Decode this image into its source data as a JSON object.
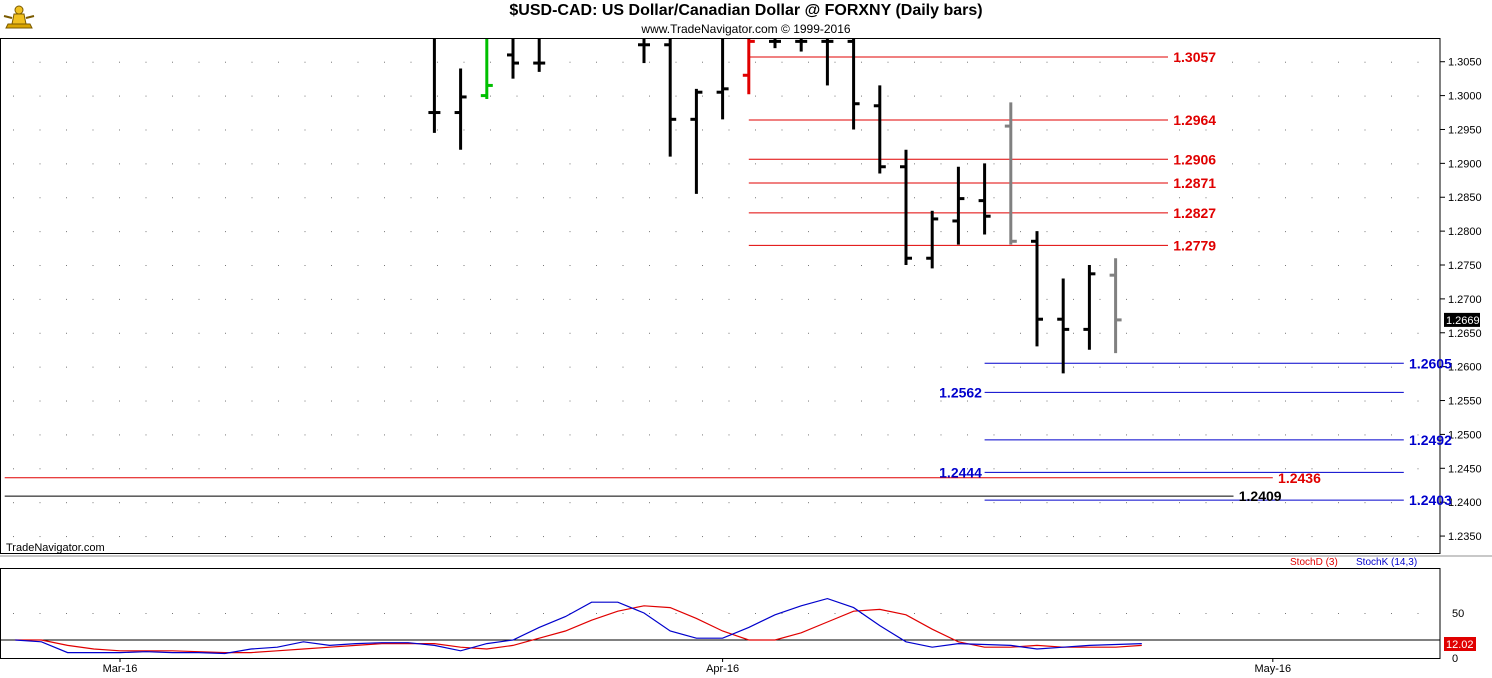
{
  "title": "$USD-CAD:  US Dollar/Canadian Dollar @ FORXNY  (Daily bars)",
  "copyright": "www.TradeNavigator.com © 1999-2016",
  "watermark": "TradeNavigator.com",
  "current_price_label": "1.2669",
  "stoch_value_label": "12.02",
  "indicator_labels": {
    "stochd": "StochD (3)",
    "stochk": "StochK (14,3)"
  },
  "colors": {
    "red_level": "#e00000",
    "blue_level": "#0000cc",
    "stochd": "#e00000",
    "stochk": "#0000cc",
    "bar": "#000000",
    "bar_gray": "#808080",
    "bar_red": "#e00000",
    "bar_green": "#00c000"
  },
  "chart_data": {
    "type": "bar",
    "price_axis": {
      "ylim": [
        1.2325,
        1.3085
      ],
      "ticks": [
        "1.3050",
        "1.3000",
        "1.2950",
        "1.2900",
        "1.2850",
        "1.2800",
        "1.2750",
        "1.2700",
        "1.2650",
        "1.2600",
        "1.2550",
        "1.2500",
        "1.2450",
        "1.2400",
        "1.2350"
      ]
    },
    "x_labels": [
      {
        "label": "Mar-16",
        "index": 0
      },
      {
        "label": "Apr-16",
        "index": 23
      },
      {
        "label": "May-16",
        "index": 44
      }
    ],
    "ohlc": [
      {
        "i": 12,
        "o": 1.2975,
        "h": 1.3085,
        "l": 1.2945,
        "c": 1.2975,
        "color": "bar"
      },
      {
        "i": 13,
        "o": 1.2975,
        "h": 1.304,
        "l": 1.292,
        "c": 1.2998,
        "color": "bar"
      },
      {
        "i": 14,
        "o": 1.3,
        "h": 1.3085,
        "l": 1.2995,
        "c": 1.3015,
        "color": "bar_green"
      },
      {
        "i": 15,
        "o": 1.306,
        "h": 1.3085,
        "l": 1.3025,
        "c": 1.3048,
        "color": "bar"
      },
      {
        "i": 16,
        "o": 1.3048,
        "h": 1.3085,
        "l": 1.3035,
        "c": 1.3048,
        "color": "bar"
      },
      {
        "i": 20,
        "o": 1.3075,
        "h": 1.3085,
        "l": 1.3048,
        "c": 1.3075,
        "color": "bar"
      },
      {
        "i": 21,
        "o": 1.3075,
        "h": 1.3085,
        "l": 1.291,
        "c": 1.2965,
        "color": "bar"
      },
      {
        "i": 22,
        "o": 1.2965,
        "h": 1.301,
        "l": 1.2855,
        "c": 1.3005,
        "color": "bar"
      },
      {
        "i": 23,
        "o": 1.3005,
        "h": 1.3085,
        "l": 1.2965,
        "c": 1.301,
        "color": "bar"
      },
      {
        "i": 24,
        "o": 1.303,
        "h": 1.3085,
        "l": 1.3002,
        "c": 1.308,
        "color": "bar_red"
      },
      {
        "i": 25,
        "o": 1.308,
        "h": 1.3085,
        "l": 1.307,
        "c": 1.308,
        "color": "bar"
      },
      {
        "i": 26,
        "o": 1.308,
        "h": 1.3085,
        "l": 1.3065,
        "c": 1.308,
        "color": "bar"
      },
      {
        "i": 27,
        "o": 1.308,
        "h": 1.3085,
        "l": 1.3015,
        "c": 1.308,
        "color": "bar"
      },
      {
        "i": 28,
        "o": 1.308,
        "h": 1.3085,
        "l": 1.295,
        "c": 1.2988,
        "color": "bar"
      },
      {
        "i": 29,
        "o": 1.2985,
        "h": 1.3015,
        "l": 1.2885,
        "c": 1.2895,
        "color": "bar"
      },
      {
        "i": 30,
        "o": 1.2895,
        "h": 1.292,
        "l": 1.275,
        "c": 1.276,
        "color": "bar"
      },
      {
        "i": 31,
        "o": 1.276,
        "h": 1.283,
        "l": 1.2745,
        "c": 1.2818,
        "color": "bar"
      },
      {
        "i": 32,
        "o": 1.2815,
        "h": 1.2895,
        "l": 1.278,
        "c": 1.2848,
        "color": "bar"
      },
      {
        "i": 33,
        "o": 1.2845,
        "h": 1.29,
        "l": 1.2795,
        "c": 1.2822,
        "color": "bar"
      },
      {
        "i": 34,
        "o": 1.2955,
        "h": 1.299,
        "l": 1.278,
        "c": 1.2785,
        "color": "bar_gray"
      },
      {
        "i": 35,
        "o": 1.2785,
        "h": 1.28,
        "l": 1.263,
        "c": 1.267,
        "color": "bar"
      },
      {
        "i": 36,
        "o": 1.267,
        "h": 1.273,
        "l": 1.259,
        "c": 1.2655,
        "color": "bar"
      },
      {
        "i": 37,
        "o": 1.2655,
        "h": 1.275,
        "l": 1.2625,
        "c": 1.2737,
        "color": "bar"
      },
      {
        "i": 38,
        "o": 1.2735,
        "h": 1.276,
        "l": 1.262,
        "c": 1.2669,
        "color": "bar_gray"
      }
    ],
    "levels": [
      {
        "label": "1.3057",
        "value": 1.3057,
        "color": "red_level",
        "x_from_idx": 24,
        "x_to_idx": 40,
        "label_idx": 40.2,
        "label_side": "right"
      },
      {
        "label": "1.2964",
        "value": 1.2964,
        "color": "red_level",
        "x_from_idx": 24,
        "x_to_idx": 40,
        "label_idx": 40.2,
        "label_side": "right"
      },
      {
        "label": "1.2906",
        "value": 1.2906,
        "color": "red_level",
        "x_from_idx": 24,
        "x_to_idx": 40,
        "label_idx": 40.2,
        "label_side": "right"
      },
      {
        "label": "1.2871",
        "value": 1.2871,
        "color": "red_level",
        "x_from_idx": 24,
        "x_to_idx": 40,
        "label_idx": 40.2,
        "label_side": "right"
      },
      {
        "label": "1.2827",
        "value": 1.2827,
        "color": "red_level",
        "x_from_idx": 24,
        "x_to_idx": 40,
        "label_idx": 40.2,
        "label_side": "right"
      },
      {
        "label": "1.2779",
        "value": 1.2779,
        "color": "red_level",
        "x_from_idx": 24,
        "x_to_idx": 40,
        "label_idx": 40.2,
        "label_side": "right"
      },
      {
        "label": "1.2605",
        "value": 1.2605,
        "color": "blue_level",
        "x_from_idx": 33,
        "x_to_idx": 49,
        "label_idx": 49.2,
        "label_side": "right"
      },
      {
        "label": "1.2562",
        "value": 1.2562,
        "color": "blue_level",
        "x_from_idx": 33,
        "x_to_idx": 49,
        "label_idx": 32.9,
        "label_side": "left"
      },
      {
        "label": "1.2492",
        "value": 1.2492,
        "color": "blue_level",
        "x_from_idx": 33,
        "x_to_idx": 49,
        "label_idx": 49.2,
        "label_side": "right"
      },
      {
        "label": "1.2444",
        "value": 1.2444,
        "color": "blue_level",
        "x_from_idx": 33,
        "x_to_idx": 49,
        "label_idx": 32.9,
        "label_side": "left"
      },
      {
        "label": "1.2436",
        "value": 1.2436,
        "color": "red_level",
        "x_from_idx": -4.4,
        "x_to_idx": 44,
        "label_idx": 44.2,
        "label_side": "right"
      },
      {
        "label": "1.2409",
        "value": 1.2409,
        "color": "bar",
        "x_from_idx": -4.4,
        "x_to_idx": 42.5,
        "label_idx": 42.7,
        "label_side": "right"
      },
      {
        "label": "1.2403",
        "value": 1.2403,
        "color": "blue_level",
        "x_from_idx": 33,
        "x_to_idx": 49,
        "label_idx": 49.2,
        "label_side": "right"
      }
    ],
    "stochastic": {
      "ylim": [
        0,
        100
      ],
      "ticks": [
        "50",
        "0"
      ],
      "reference": 20,
      "start_index": -4,
      "stochd": [
        20,
        20,
        14,
        10,
        8,
        8,
        8,
        7,
        6,
        6,
        8,
        10,
        12,
        14,
        16,
        16,
        16,
        12,
        10,
        14,
        22,
        30,
        42,
        52,
        58,
        56,
        44,
        30,
        20,
        20,
        28,
        40,
        52,
        54,
        48,
        32,
        18,
        12,
        12,
        14,
        12,
        12,
        12,
        14
      ],
      "stochk": [
        20,
        18,
        6,
        6,
        6,
        7,
        6,
        6,
        5,
        10,
        12,
        18,
        14,
        16,
        17,
        17,
        14,
        8,
        16,
        20,
        34,
        46,
        62,
        62,
        50,
        30,
        22,
        22,
        34,
        48,
        58,
        66,
        56,
        36,
        18,
        12,
        16,
        15,
        14,
        10,
        12,
        14,
        15,
        16
      ]
    }
  }
}
